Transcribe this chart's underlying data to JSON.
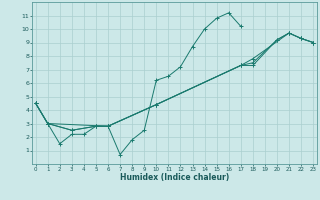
{
  "background_color": "#cce8e8",
  "grid_color": "#aacfcf",
  "line_color": "#1a7a6e",
  "xlabel": "Humidex (Indice chaleur)",
  "xlim": [
    -0.3,
    23.3
  ],
  "ylim": [
    0,
    12
  ],
  "xticks": [
    0,
    1,
    2,
    3,
    4,
    5,
    6,
    7,
    8,
    9,
    10,
    11,
    12,
    13,
    14,
    15,
    16,
    17,
    18,
    19,
    20,
    21,
    22,
    23
  ],
  "yticks": [
    1,
    2,
    3,
    4,
    5,
    6,
    7,
    8,
    9,
    10,
    11
  ],
  "line1_x": [
    0,
    1,
    2,
    3,
    4,
    5,
    6,
    7,
    8,
    9,
    10,
    11,
    12,
    13,
    14,
    15,
    16,
    17
  ],
  "line1_y": [
    4.5,
    3.0,
    1.5,
    2.2,
    2.2,
    2.8,
    2.8,
    0.7,
    1.8,
    2.5,
    6.2,
    6.5,
    7.2,
    8.7,
    10.0,
    10.8,
    11.2,
    10.2
  ],
  "line2_x": [
    0,
    1,
    3,
    5,
    6,
    10,
    17,
    18,
    20,
    21,
    22,
    23
  ],
  "line2_y": [
    4.5,
    3.0,
    2.5,
    2.8,
    2.8,
    4.4,
    7.3,
    7.3,
    9.2,
    9.7,
    9.3,
    9.0
  ],
  "line3_x": [
    0,
    1,
    3,
    5,
    6,
    10,
    17,
    18,
    20,
    21,
    22,
    23
  ],
  "line3_y": [
    4.5,
    3.0,
    2.5,
    2.8,
    2.8,
    4.4,
    7.3,
    7.5,
    9.2,
    9.7,
    9.3,
    9.0
  ],
  "line4_x": [
    0,
    1,
    6,
    10,
    17,
    18,
    21,
    22,
    23
  ],
  "line4_y": [
    4.5,
    3.0,
    2.8,
    4.4,
    7.3,
    7.8,
    9.7,
    9.3,
    9.0
  ]
}
